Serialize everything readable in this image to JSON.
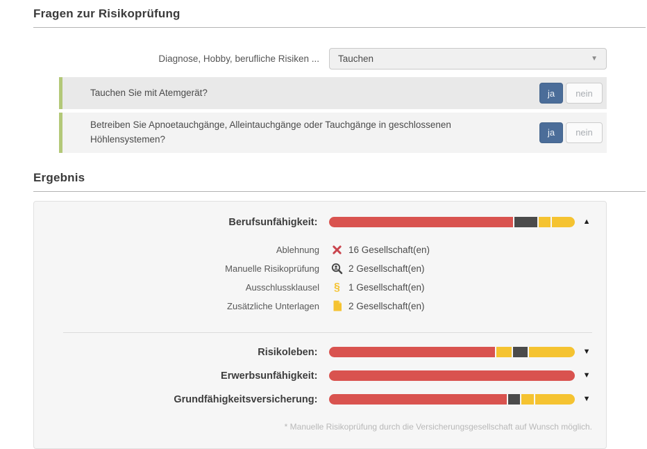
{
  "colors": {
    "decline": "#d9534f",
    "manual": "#4b4b4b",
    "clause": "#f5c331",
    "docs": "#f5c331",
    "accent_yes": "#4b6d99",
    "question_border": "#b3c878"
  },
  "sections": {
    "risk_questions_title": "Fragen zur Risikoprüfung",
    "result_title": "Ergebnis"
  },
  "risk_form": {
    "category_label": "Diagnose, Hobby, berufliche Risiken ...",
    "category_value": "Tauchen",
    "questions": [
      {
        "text": "Tauchen Sie mit Atemgerät?",
        "yes_label": "ja",
        "no_label": "nein",
        "selected": "ja"
      },
      {
        "text": "Betreiben Sie Apnoetauchgänge, Alleintauchgänge oder Tauchgänge in geschlossenen Höhlensystemen?",
        "yes_label": "ja",
        "no_label": "nein",
        "selected": "ja"
      }
    ]
  },
  "results": {
    "products": [
      {
        "label": "Berufsunfähigkeit:",
        "expanded": true,
        "arrow": "▲",
        "segments": [
          {
            "type": "decline",
            "percent": 76.2
          },
          {
            "type": "manual",
            "percent": 9.5
          },
          {
            "type": "clause",
            "percent": 4.8
          },
          {
            "type": "docs",
            "percent": 9.5
          }
        ],
        "details": [
          {
            "label": "Ablehnung",
            "icon": "reject-icon",
            "count": "16 Gesellschaft(en)"
          },
          {
            "label": "Manuelle Risikoprüfung",
            "icon": "manual-check-icon",
            "count": "2 Gesellschaft(en)"
          },
          {
            "label": "Ausschlussklausel",
            "icon": "exclusion-clause-icon",
            "count": "1 Gesellschaft(en)"
          },
          {
            "label": "Zusätzliche Unterlagen",
            "icon": "documents-icon",
            "count": "2 Gesellschaft(en)"
          }
        ]
      },
      {
        "label": "Risikoleben:",
        "expanded": false,
        "arrow": "▼",
        "segments": [
          {
            "type": "decline",
            "percent": 68.5
          },
          {
            "type": "clause",
            "percent": 6.5
          },
          {
            "type": "manual",
            "percent": 6.0
          },
          {
            "type": "docs",
            "percent": 19.0
          }
        ]
      },
      {
        "label": "Erwerbsunfähigkeit:",
        "expanded": false,
        "arrow": "▼",
        "segments": [
          {
            "type": "decline",
            "percent": 100
          }
        ]
      },
      {
        "label": "Grundfähigkeitsversicherung:",
        "expanded": false,
        "arrow": "▼",
        "segments": [
          {
            "type": "decline",
            "percent": 73.5
          },
          {
            "type": "manual",
            "percent": 5.0
          },
          {
            "type": "clause",
            "percent": 5.0
          },
          {
            "type": "docs",
            "percent": 16.5
          }
        ]
      }
    ],
    "footnote": "* Manuelle Risikoprüfung durch die Versicherungsgesellschaft auf Wunsch möglich."
  }
}
